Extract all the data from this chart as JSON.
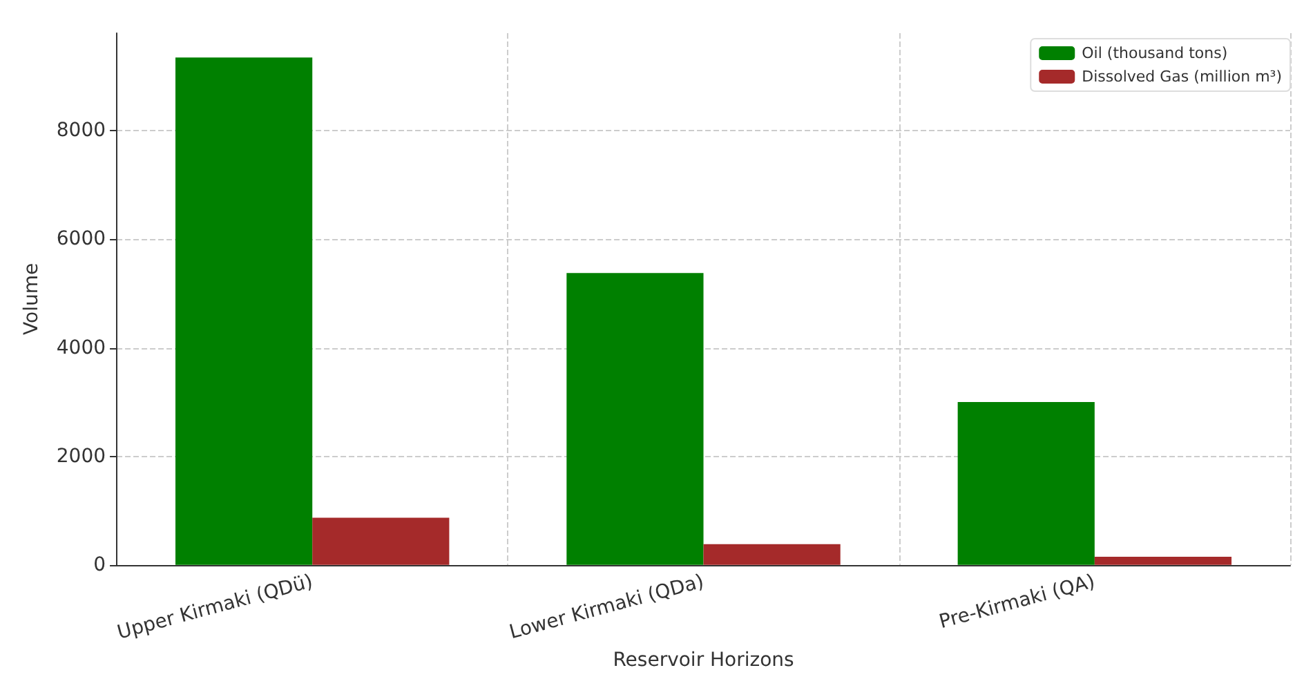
{
  "chart_data": {
    "type": "bar",
    "xlabel": "Reservoir Horizons",
    "ylabel": "Volume",
    "categories": [
      "Upper Kirmaki (QDü)",
      "Lower Kirmaki (QDa)",
      "Pre-Kirmaki (QA)"
    ],
    "series": [
      {
        "name": "Oil (thousand tons)",
        "color": "#008000",
        "values": [
          9350,
          5380,
          3000
        ]
      },
      {
        "name": "Dissolved Gas (million m³)",
        "color": "#a52a2a",
        "values": [
          870,
          380,
          150
        ]
      }
    ],
    "ylim": [
      0,
      9800
    ],
    "yticks": [
      0,
      2000,
      4000,
      6000,
      8000
    ],
    "grid": true,
    "legend": "top right"
  }
}
